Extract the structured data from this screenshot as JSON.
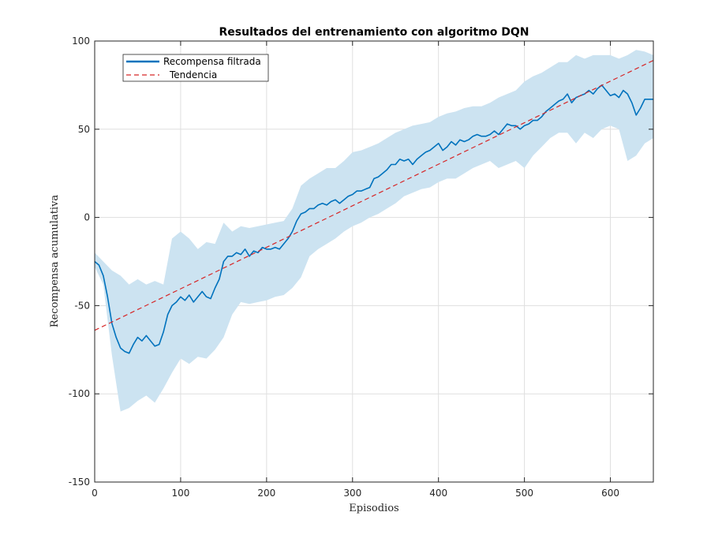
{
  "chart_data": {
    "type": "line",
    "title": "Resultados del entrenamiento con algoritmo DQN",
    "xlabel": "Episodios",
    "ylabel": "Recompensa acumulativa",
    "xlim": [
      0,
      650
    ],
    "ylim": [
      -150,
      100
    ],
    "xticks": [
      0,
      100,
      200,
      300,
      400,
      500,
      600
    ],
    "yticks": [
      -150,
      -100,
      -50,
      0,
      50,
      100
    ],
    "xtick_labels": [
      "0",
      "100",
      "200",
      "300",
      "400",
      "500",
      "600"
    ],
    "ytick_labels": [
      "-150",
      "-100",
      "-50",
      "0",
      "50",
      "100"
    ],
    "grid": true,
    "legend_position": "top-left",
    "series": [
      {
        "name": "Recompensa filtrada",
        "style": "solid",
        "color": "#0072BD",
        "x": [
          0,
          5,
          10,
          15,
          20,
          25,
          30,
          35,
          40,
          45,
          50,
          55,
          60,
          65,
          70,
          75,
          80,
          85,
          90,
          95,
          100,
          105,
          110,
          115,
          120,
          125,
          130,
          135,
          140,
          145,
          150,
          155,
          160,
          165,
          170,
          175,
          180,
          185,
          190,
          195,
          200,
          205,
          210,
          215,
          220,
          225,
          230,
          235,
          240,
          245,
          250,
          255,
          260,
          265,
          270,
          275,
          280,
          285,
          290,
          295,
          300,
          305,
          310,
          315,
          320,
          325,
          330,
          335,
          340,
          345,
          350,
          355,
          360,
          365,
          370,
          375,
          380,
          385,
          390,
          395,
          400,
          405,
          410,
          415,
          420,
          425,
          430,
          435,
          440,
          445,
          450,
          455,
          460,
          465,
          470,
          475,
          480,
          485,
          490,
          495,
          500,
          505,
          510,
          515,
          520,
          525,
          530,
          535,
          540,
          545,
          550,
          555,
          560,
          565,
          570,
          575,
          580,
          585,
          590,
          595,
          600,
          605,
          610,
          615,
          620,
          625,
          630,
          635,
          640,
          645,
          650
        ],
        "values": [
          -25,
          -27,
          -33,
          -45,
          -60,
          -68,
          -74,
          -76,
          -77,
          -72,
          -68,
          -70,
          -67,
          -70,
          -73,
          -72,
          -65,
          -55,
          -50,
          -48,
          -45,
          -47,
          -44,
          -48,
          -45,
          -42,
          -45,
          -46,
          -40,
          -35,
          -25,
          -22,
          -22,
          -20,
          -21,
          -18,
          -22,
          -19,
          -20,
          -17,
          -18,
          -18,
          -17,
          -18,
          -15,
          -12,
          -8,
          -2,
          2,
          3,
          5,
          5,
          7,
          8,
          7,
          9,
          10,
          8,
          10,
          12,
          13,
          15,
          15,
          16,
          17,
          22,
          23,
          25,
          27,
          30,
          30,
          33,
          32,
          33,
          30,
          33,
          35,
          37,
          38,
          40,
          42,
          38,
          40,
          43,
          41,
          44,
          43,
          44,
          46,
          47,
          46,
          46,
          47,
          49,
          47,
          50,
          53,
          52,
          52,
          50,
          52,
          53,
          55,
          55,
          57,
          60,
          62,
          64,
          66,
          67,
          70,
          65,
          68,
          69,
          70,
          72,
          70,
          73,
          75,
          72,
          69,
          70,
          68,
          72,
          70,
          65,
          58,
          62,
          67,
          67,
          67
        ]
      },
      {
        "name": "Tendencia",
        "style": "dashed",
        "color": "#D62728",
        "x": [
          0,
          650
        ],
        "values": [
          -64,
          89
        ]
      }
    ],
    "band": {
      "color": "#CCE3F1",
      "x": [
        0,
        10,
        20,
        30,
        40,
        50,
        60,
        70,
        80,
        90,
        100,
        110,
        120,
        130,
        140,
        150,
        160,
        170,
        180,
        190,
        200,
        210,
        220,
        230,
        240,
        250,
        260,
        270,
        280,
        290,
        300,
        310,
        320,
        330,
        340,
        350,
        360,
        370,
        380,
        390,
        400,
        410,
        420,
        430,
        440,
        450,
        460,
        470,
        480,
        490,
        500,
        510,
        520,
        530,
        540,
        550,
        560,
        570,
        580,
        590,
        600,
        610,
        620,
        630,
        640,
        650
      ],
      "upper": [
        -20,
        -25,
        -30,
        -33,
        -38,
        -35,
        -38,
        -36,
        -38,
        -12,
        -8,
        -12,
        -18,
        -14,
        -15,
        -3,
        -8,
        -5,
        -6,
        -5,
        -4,
        -3,
        -2,
        5,
        18,
        22,
        25,
        28,
        28,
        32,
        37,
        38,
        40,
        42,
        45,
        48,
        50,
        52,
        53,
        54,
        57,
        59,
        60,
        62,
        63,
        63,
        65,
        68,
        70,
        72,
        77,
        80,
        82,
        85,
        88,
        88,
        92,
        90,
        92,
        92,
        92,
        90,
        92,
        95,
        94,
        92
      ],
      "lower": [
        -28,
        -38,
        -78,
        -110,
        -108,
        -104,
        -101,
        -105,
        -97,
        -88,
        -80,
        -83,
        -79,
        -80,
        -75,
        -68,
        -55,
        -48,
        -49,
        -48,
        -47,
        -45,
        -44,
        -40,
        -34,
        -22,
        -18,
        -15,
        -12,
        -8,
        -5,
        -3,
        0,
        2,
        5,
        8,
        12,
        14,
        16,
        17,
        20,
        22,
        22,
        25,
        28,
        30,
        32,
        28,
        30,
        32,
        28,
        35,
        40,
        45,
        48,
        48,
        42,
        48,
        45,
        50,
        52,
        50,
        32,
        35,
        42,
        45
      ]
    }
  }
}
